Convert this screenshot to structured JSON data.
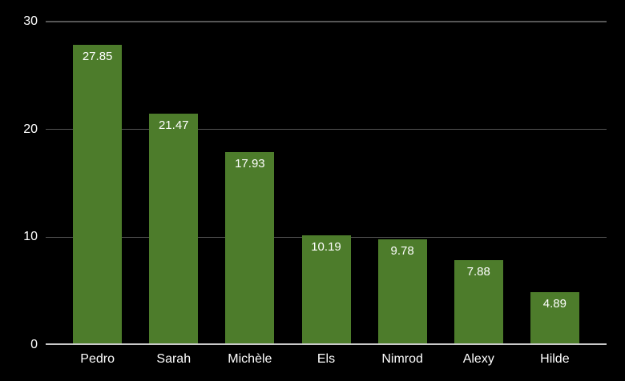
{
  "chart_data": {
    "type": "bar",
    "title": "",
    "xlabel": "",
    "ylabel": "",
    "categories": [
      "Pedro",
      "Sarah",
      "Michèle",
      "Els",
      "Nimrod",
      "Alexy",
      "Hilde"
    ],
    "values": [
      27.85,
      21.47,
      17.93,
      10.19,
      9.78,
      7.88,
      4.89
    ],
    "value_labels": [
      "27.85",
      "21.47",
      "17.93",
      "10.19",
      "9.78",
      "7.88",
      "4.89"
    ],
    "ylim": [
      0,
      30
    ],
    "yticks": [
      0,
      10,
      20,
      30
    ],
    "grid": "horizontal",
    "legend": "none",
    "colors": {
      "background": "#000000",
      "bar": "#4d7c2b",
      "gridline": "#565656",
      "axis_line": "#c9c9c9",
      "text": "#ffffff"
    }
  }
}
